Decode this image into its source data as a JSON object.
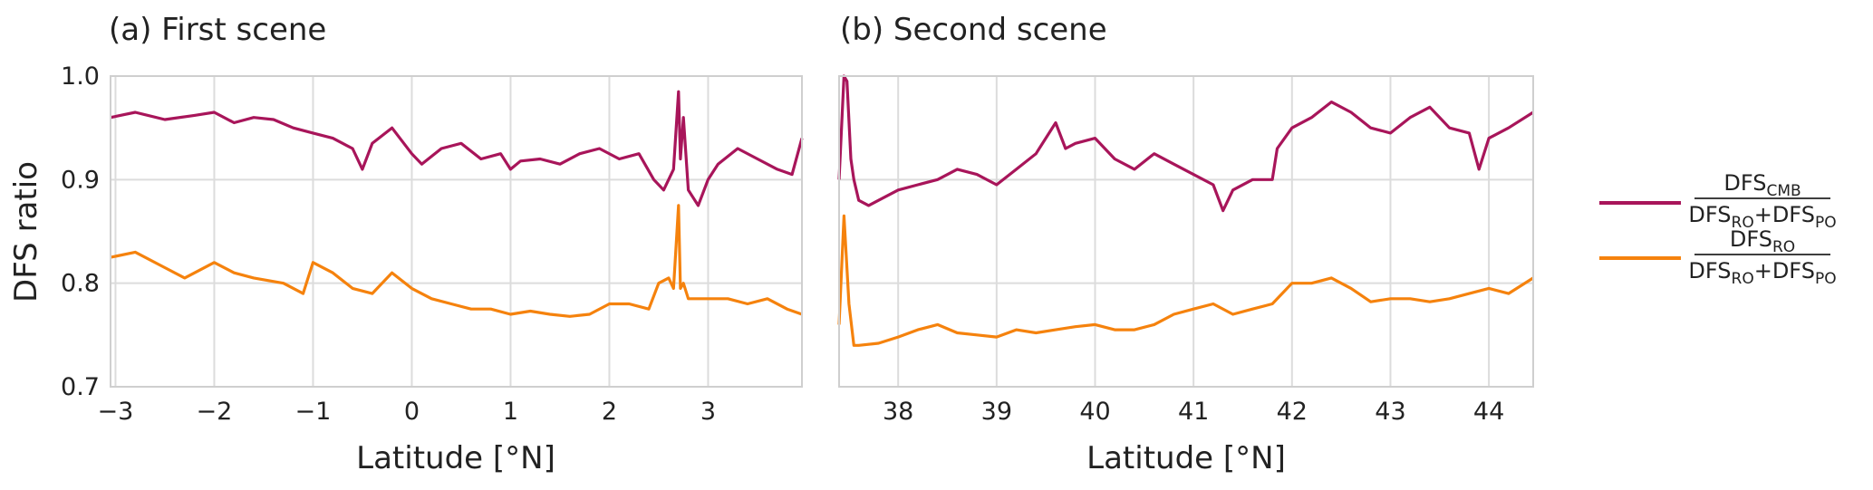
{
  "figure": {
    "ylabel": "DFS ratio",
    "legend": [
      {
        "numerator": "DFS",
        "numerator_sub": "CMB",
        "den_a": "DFS",
        "den_a_sub": "RO",
        "plus": "+",
        "den_b": "DFS",
        "den_b_sub": "PO",
        "color": "#a8155a"
      },
      {
        "numerator": "DFS",
        "numerator_sub": "RO",
        "den_a": "DFS",
        "den_a_sub": "RO",
        "plus": "+",
        "den_b": "DFS",
        "den_b_sub": "PO",
        "color": "#f5820d"
      }
    ],
    "legend_position": "right"
  },
  "chart_data": [
    {
      "type": "line",
      "title": "(a) First scene",
      "xlabel": "Latitude [°N]",
      "ylabel": "DFS ratio",
      "xlim": [
        -3.05,
        3.95
      ],
      "ylim": [
        0.7,
        1.0
      ],
      "xticks": [
        -3,
        -2,
        -1,
        0,
        1,
        2,
        3
      ],
      "xtick_labels": [
        "−3",
        "−2",
        "−1",
        "0",
        "1",
        "2",
        "3"
      ],
      "yticks": [
        0.7,
        0.8,
        0.9,
        1.0
      ],
      "ytick_labels": [
        "0.7",
        "0.8",
        "0.9",
        "1.0"
      ],
      "grid": true,
      "series": [
        {
          "color": "#a8155a",
          "x": [
            -3.05,
            -2.8,
            -2.5,
            -2.2,
            -2.0,
            -1.8,
            -1.6,
            -1.4,
            -1.2,
            -1.0,
            -0.8,
            -0.6,
            -0.5,
            -0.4,
            -0.2,
            0.0,
            0.1,
            0.3,
            0.5,
            0.7,
            0.9,
            1.0,
            1.1,
            1.3,
            1.5,
            1.7,
            1.9,
            2.1,
            2.3,
            2.45,
            2.55,
            2.65,
            2.7,
            2.72,
            2.75,
            2.8,
            2.9,
            3.0,
            3.1,
            3.3,
            3.5,
            3.7,
            3.85,
            3.95
          ],
          "y": [
            0.96,
            0.965,
            0.958,
            0.962,
            0.965,
            0.955,
            0.96,
            0.958,
            0.95,
            0.945,
            0.94,
            0.93,
            0.91,
            0.935,
            0.95,
            0.925,
            0.915,
            0.93,
            0.935,
            0.92,
            0.925,
            0.91,
            0.918,
            0.92,
            0.915,
            0.925,
            0.93,
            0.92,
            0.925,
            0.9,
            0.89,
            0.91,
            0.985,
            0.92,
            0.96,
            0.89,
            0.875,
            0.9,
            0.915,
            0.93,
            0.92,
            0.91,
            0.905,
            0.94
          ]
        },
        {
          "color": "#f5820d",
          "x": [
            -3.05,
            -2.8,
            -2.5,
            -2.3,
            -2.0,
            -1.8,
            -1.6,
            -1.3,
            -1.1,
            -1.0,
            -0.8,
            -0.6,
            -0.4,
            -0.2,
            0.0,
            0.2,
            0.4,
            0.6,
            0.8,
            1.0,
            1.2,
            1.4,
            1.6,
            1.8,
            2.0,
            2.2,
            2.4,
            2.5,
            2.6,
            2.65,
            2.7,
            2.72,
            2.75,
            2.8,
            3.0,
            3.2,
            3.4,
            3.6,
            3.8,
            3.95
          ],
          "y": [
            0.825,
            0.83,
            0.815,
            0.805,
            0.82,
            0.81,
            0.805,
            0.8,
            0.79,
            0.82,
            0.81,
            0.795,
            0.79,
            0.81,
            0.795,
            0.785,
            0.78,
            0.775,
            0.775,
            0.77,
            0.773,
            0.77,
            0.768,
            0.77,
            0.78,
            0.78,
            0.775,
            0.8,
            0.805,
            0.795,
            0.875,
            0.795,
            0.8,
            0.785,
            0.785,
            0.785,
            0.78,
            0.785,
            0.775,
            0.77
          ]
        }
      ]
    },
    {
      "type": "line",
      "title": "(b) Second scene",
      "xlabel": "Latitude [°N]",
      "xlim": [
        37.4,
        44.45
      ],
      "ylim": [
        0.7,
        1.0
      ],
      "xticks": [
        38,
        39,
        40,
        41,
        42,
        43,
        44
      ],
      "xtick_labels": [
        "38",
        "39",
        "40",
        "41",
        "42",
        "43",
        "44"
      ],
      "yticks": [
        0.7,
        0.8,
        0.9,
        1.0
      ],
      "grid": true,
      "series": [
        {
          "color": "#a8155a",
          "x": [
            37.4,
            37.45,
            37.48,
            37.52,
            37.55,
            37.6,
            37.7,
            37.8,
            38.0,
            38.2,
            38.4,
            38.6,
            38.8,
            39.0,
            39.2,
            39.4,
            39.6,
            39.7,
            39.8,
            40.0,
            40.2,
            40.4,
            40.6,
            40.8,
            41.0,
            41.2,
            41.3,
            41.4,
            41.6,
            41.8,
            41.85,
            42.0,
            42.2,
            42.4,
            42.6,
            42.8,
            43.0,
            43.2,
            43.4,
            43.6,
            43.8,
            43.9,
            44.0,
            44.2,
            44.45
          ],
          "y": [
            0.9,
            1.0,
            0.995,
            0.92,
            0.9,
            0.88,
            0.875,
            0.88,
            0.89,
            0.895,
            0.9,
            0.91,
            0.905,
            0.895,
            0.91,
            0.925,
            0.955,
            0.93,
            0.935,
            0.94,
            0.92,
            0.91,
            0.925,
            0.915,
            0.905,
            0.895,
            0.87,
            0.89,
            0.9,
            0.9,
            0.93,
            0.95,
            0.96,
            0.975,
            0.965,
            0.95,
            0.945,
            0.96,
            0.97,
            0.95,
            0.945,
            0.91,
            0.94,
            0.95,
            0.965
          ]
        },
        {
          "color": "#f5820d",
          "x": [
            37.4,
            37.45,
            37.5,
            37.55,
            37.6,
            37.8,
            38.0,
            38.2,
            38.4,
            38.6,
            38.8,
            39.0,
            39.2,
            39.4,
            39.6,
            39.8,
            40.0,
            40.2,
            40.4,
            40.6,
            40.8,
            41.0,
            41.2,
            41.4,
            41.6,
            41.8,
            42.0,
            42.2,
            42.4,
            42.6,
            42.8,
            43.0,
            43.2,
            43.4,
            43.6,
            43.8,
            44.0,
            44.2,
            44.45
          ],
          "y": [
            0.76,
            0.865,
            0.78,
            0.74,
            0.74,
            0.742,
            0.748,
            0.755,
            0.76,
            0.752,
            0.75,
            0.748,
            0.755,
            0.752,
            0.755,
            0.758,
            0.76,
            0.755,
            0.755,
            0.76,
            0.77,
            0.775,
            0.78,
            0.77,
            0.775,
            0.78,
            0.8,
            0.8,
            0.805,
            0.795,
            0.782,
            0.785,
            0.785,
            0.782,
            0.785,
            0.79,
            0.795,
            0.79,
            0.805
          ]
        }
      ]
    }
  ]
}
